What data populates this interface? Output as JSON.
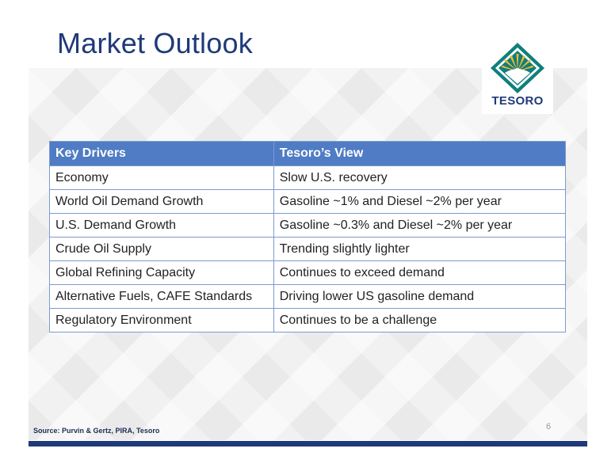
{
  "slide": {
    "title": "Market Outlook",
    "page_number": "6",
    "source": "Source: Purvin & Gertz, PIRA, Tesoro"
  },
  "logo": {
    "text": "TESORO",
    "icon": "tesoro-diamond-sunburst-icon",
    "colors": {
      "diamond": "#0f7f7c",
      "rays": "#f2b632",
      "text": "#1f3a7a"
    }
  },
  "table": {
    "headers": [
      "Key Drivers",
      "Tesoro’s View"
    ],
    "rows": [
      [
        "Economy",
        "Slow U.S. recovery"
      ],
      [
        "World Oil Demand Growth",
        "Gasoline ~1% and Diesel ~2% per year"
      ],
      [
        "U.S. Demand Growth",
        "Gasoline ~0.3% and Diesel ~2% per year"
      ],
      [
        "Crude Oil Supply",
        "Trending slightly lighter"
      ],
      [
        "Global Refining Capacity",
        "Continues to exceed demand"
      ],
      [
        "Alternative Fuels, CAFE Standards",
        "Driving lower US gasoline demand"
      ],
      [
        "Regulatory Environment",
        "Continues to be a challenge"
      ]
    ]
  },
  "theme": {
    "title_color": "#1f3a7a",
    "header_fill": "#4f7cc4",
    "border_color": "#7a9bd0",
    "footer_bar": "#1f3a7a"
  }
}
